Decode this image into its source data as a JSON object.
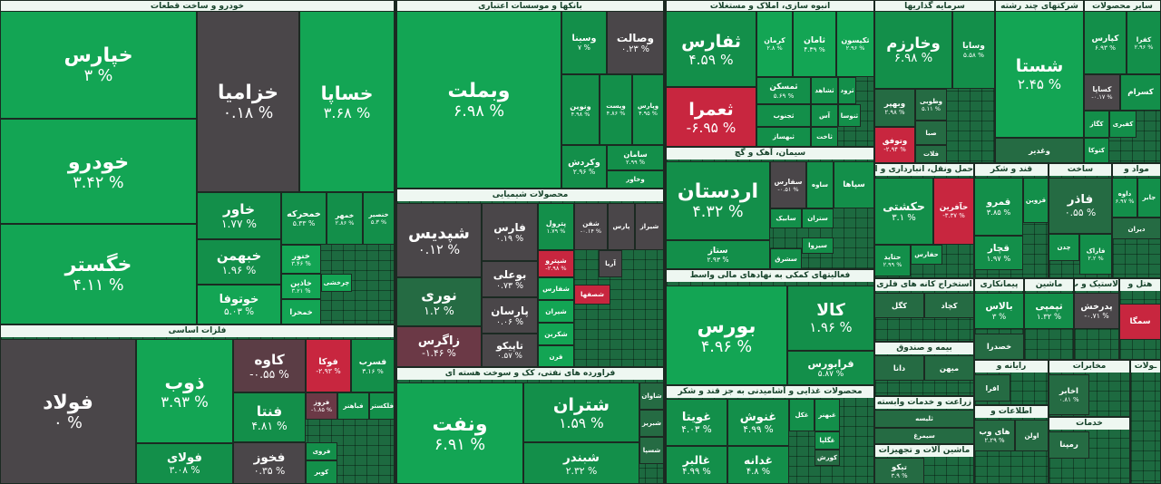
{
  "sectors": [
    {
      "title": "خودرو و ساخت قطعات",
      "tiles": [
        {
          "name": "خپارس",
          "change": "۳ %",
          "color": "#13a554"
        },
        {
          "name": "خودرو",
          "change": "۳.۴۲ %",
          "color": "#13a554"
        },
        {
          "name": "خگستر",
          "change": "۴.۱۱ %",
          "color": "#13a554"
        },
        {
          "name": "خزامیا",
          "change": "۰.۱۸ %",
          "color": "#4a4649"
        },
        {
          "name": "خساپا",
          "change": "۳.۶۸ %",
          "color": "#13a554"
        },
        {
          "name": "خاور",
          "change": "۱.۷۷ %",
          "color": "#138f4a"
        },
        {
          "name": "خبهمن",
          "change": "۱.۹۶ %",
          "color": "#138f4a"
        },
        {
          "name": "خوتوفا",
          "change": "۵.۰۳ %",
          "color": "#13a554"
        },
        {
          "name": "خمحرکه",
          "change": "۵.۳۳ %",
          "color": "#138f4a"
        },
        {
          "name": "خمهر",
          "change": "۲.۸۶ %",
          "color": "#138f4a"
        },
        {
          "name": "خنصیر",
          "change": "۵.۳ %",
          "color": "#138f4a"
        },
        {
          "name": "خنور",
          "change": "۳.۴۶ %",
          "color": "#13a554"
        },
        {
          "name": "خاذین",
          "change": "۳.۲۱ %",
          "color": "#13a554"
        },
        {
          "name": "خمحرا",
          "color": "#13a554"
        },
        {
          "name": "چرخشی",
          "color": "#13a554"
        }
      ]
    },
    {
      "title": "فلزات اساسی",
      "tiles": [
        {
          "name": "فولاد",
          "change": "۰ %",
          "color": "#4a4649"
        },
        {
          "name": "ذوب",
          "change": "۳.۹۳ %",
          "color": "#13a554"
        },
        {
          "name": "فولای",
          "change": "۳.۰۸ %",
          "color": "#138f4a"
        },
        {
          "name": "کاوه",
          "change": "-۰.۵۵ %",
          "color": "#5b3d45"
        },
        {
          "name": "فوکا",
          "change": "-۲.۹۳ %",
          "color": "#c8263f"
        },
        {
          "name": "فسرب",
          "change": "۳.۱۶ %",
          "color": "#138f4a"
        },
        {
          "name": "فنتا",
          "change": "۴.۸۱ %",
          "color": "#138f4a"
        },
        {
          "name": "فخوز",
          "change": "۰.۳۵ %",
          "color": "#4a4649"
        },
        {
          "name": "فروز",
          "change": "-۱.۸۵ %",
          "color": "#6b3946"
        },
        {
          "name": "فباهنر",
          "color": "#138f4a"
        },
        {
          "name": "فلکستر",
          "color": "#138f4a"
        },
        {
          "name": "فروی",
          "color": "#138f4a"
        },
        {
          "name": "کویر",
          "color": "#138f4a"
        }
      ]
    },
    {
      "title": "بانکها و موسسات اعتباری",
      "tiles": [
        {
          "name": "وبملت",
          "change": "۶.۹۸ %",
          "color": "#13a554"
        },
        {
          "name": "وسینا",
          "change": "۷ %",
          "color": "#138f4a"
        },
        {
          "name": "وصالت",
          "change": "۰.۲۳ %",
          "color": "#4a4649"
        },
        {
          "name": "ونوین",
          "change": "۴.۹۸ %",
          "color": "#138f4a"
        },
        {
          "name": "وپست",
          "change": "۴.۸۶ %",
          "color": "#138f4a"
        },
        {
          "name": "وپارس",
          "change": "۴.۹۵ %",
          "color": "#138f4a"
        },
        {
          "name": "وکردش",
          "change": "۲.۹۶ %",
          "color": "#138f4a"
        },
        {
          "name": "سامان",
          "change": "۲.۹۹ %",
          "color": "#138f4a"
        },
        {
          "name": "وخاور",
          "color": "#138f4a"
        }
      ]
    },
    {
      "title": "محصولات شیمیایی",
      "tiles": [
        {
          "name": "شپدیس",
          "change": "۰.۱۲ %",
          "color": "#4a4649"
        },
        {
          "name": "نوری",
          "change": "۱.۲ %",
          "color": "#256b43"
        },
        {
          "name": "زاگرس",
          "change": "-۱.۴۶ %",
          "color": "#6b3946"
        },
        {
          "name": "فارس",
          "change": "۰.۱۹ %",
          "color": "#4a4649"
        },
        {
          "name": "بوعلی",
          "change": "۰.۷۳ %",
          "color": "#4a4649"
        },
        {
          "name": "پارسان",
          "change": "۰.۰۶ %",
          "color": "#4a4649"
        },
        {
          "name": "تاپیکو",
          "change": "۰.۵۷ %",
          "color": "#4a4649"
        },
        {
          "name": "پترول",
          "change": "۱.۷۹ %",
          "color": "#138f4a"
        },
        {
          "name": "شفن",
          "change": "-۰.۱۴ %",
          "color": "#4a4649"
        },
        {
          "name": "پارس",
          "color": "#4a4649"
        },
        {
          "name": "شیراز",
          "color": "#4a4649"
        },
        {
          "name": "شپترو",
          "change": "-۲.۹۸ %",
          "color": "#c8263f"
        },
        {
          "name": "شفارس",
          "color": "#13a554"
        },
        {
          "name": "شیران",
          "color": "#13a554"
        },
        {
          "name": "شکربن",
          "color": "#13a554"
        },
        {
          "name": "قرن",
          "color": "#13a554"
        },
        {
          "name": "شصفها",
          "color": "#c8263f"
        },
        {
          "name": "آریا",
          "color": "#4a4649"
        }
      ]
    },
    {
      "title": "فراورده های نفتی، کک و سوخت هسته ای",
      "tiles": [
        {
          "name": "ونفت",
          "change": "۶.۹۱ %",
          "color": "#13a554"
        },
        {
          "name": "شتران",
          "change": "۱.۵۹ %",
          "color": "#138f4a"
        },
        {
          "name": "شبندر",
          "change": "۲.۳۲ %",
          "color": "#138f4a"
        },
        {
          "name": "شاوان",
          "color": "#256b43"
        },
        {
          "name": "شبریز",
          "color": "#256b43"
        },
        {
          "name": "شسپا",
          "color": "#256b43"
        }
      ]
    },
    {
      "title": "انبوه سازی، املاک و مستغلات",
      "tiles": [
        {
          "name": "ثفارس",
          "change": "۴.۵۹ %",
          "color": "#138f4a"
        },
        {
          "name": "ثعمرا",
          "change": "-۶.۹۵ %",
          "color": "#c8263f"
        },
        {
          "name": "کرمان",
          "change": "۲.۸ %",
          "color": "#13a554"
        },
        {
          "name": "ثامان",
          "change": "۴.۳۹ %",
          "color": "#13a554"
        },
        {
          "name": "ثکیسون",
          "change": "۲.۹۶ %",
          "color": "#13a554"
        },
        {
          "name": "ثمسکن",
          "change": "۵.۶۹ %",
          "color": "#138f4a"
        },
        {
          "name": "ثشاهد",
          "color": "#138f4a"
        },
        {
          "name": "ثرود",
          "color": "#138f4a"
        },
        {
          "name": "ثجنوب",
          "color": "#138f4a"
        },
        {
          "name": "آس",
          "color": "#138f4a"
        },
        {
          "name": "ثنوسا",
          "color": "#138f4a"
        },
        {
          "name": "ثبهساز",
          "color": "#138f4a"
        },
        {
          "name": "ثاخت",
          "color": "#138f4a"
        }
      ]
    },
    {
      "title": "سیمان، آهک و گچ",
      "tiles": [
        {
          "name": "اردستان",
          "change": "۴.۳۲ %",
          "color": "#138f4a"
        },
        {
          "name": "ستاز",
          "change": "۲.۹۳ %",
          "color": "#138f4a"
        },
        {
          "name": "سفارس",
          "change": "-۰.۵۱ %",
          "color": "#4a4649"
        },
        {
          "name": "ساوه",
          "color": "#138f4a"
        },
        {
          "name": "سپاها",
          "color": "#138f4a"
        },
        {
          "name": "سابیک",
          "color": "#138f4a"
        },
        {
          "name": "ستران",
          "color": "#138f4a"
        },
        {
          "name": "سشرق",
          "color": "#138f4a"
        },
        {
          "name": "سیزوا",
          "color": "#138f4a"
        }
      ]
    },
    {
      "title": "فعالیتهای کمکی به نهادهای مالی واسط",
      "tiles": [
        {
          "name": "بورس",
          "change": "۴.۹۶ %",
          "color": "#13a554"
        },
        {
          "name": "کالا",
          "change": "۱.۹۶ %",
          "color": "#138f4a"
        },
        {
          "name": "فرابورس",
          "change": "۵.۸۷ %",
          "color": "#138f4a"
        }
      ]
    },
    {
      "title": "محصولات غذایی و آشامیدنی به جز قند و شکر",
      "tiles": [
        {
          "name": "غویتا",
          "change": "۴.۰۳ %",
          "color": "#138f4a"
        },
        {
          "name": "غالبر",
          "change": "۴.۹۹ %",
          "color": "#138f4a"
        },
        {
          "name": "غنوش",
          "change": "۴.۹۹ %",
          "color": "#138f4a"
        },
        {
          "name": "غدانه",
          "change": "۴.۸ %",
          "color": "#138f4a"
        },
        {
          "name": "غکل",
          "color": "#138f4a"
        },
        {
          "name": "غبهنر",
          "color": "#138f4a"
        },
        {
          "name": "غگلپا",
          "color": "#138f4a"
        },
        {
          "name": "کورش",
          "color": "#256b43"
        }
      ]
    },
    {
      "title": "سرمایه گذاریها",
      "tiles": [
        {
          "name": "وخارزم",
          "change": "۶.۹۸ %",
          "color": "#138f4a"
        },
        {
          "name": "وسایا",
          "change": "۵.۵۸ %",
          "color": "#138f4a"
        },
        {
          "name": "وبهپر",
          "change": "۲.۹۸ %",
          "color": "#256b43"
        },
        {
          "name": "وطوبی",
          "change": "۵.۱۱ %",
          "color": "#256b43"
        },
        {
          "name": "صبا",
          "color": "#256b43"
        },
        {
          "name": "وتوفق",
          "change": "-۲.۹۴ %",
          "color": "#c8263f"
        },
        {
          "name": "فلات",
          "color": "#256b43"
        }
      ]
    },
    {
      "title": "شرکتهای چند رشته",
      "tiles": [
        {
          "name": "شستا",
          "change": "۲.۴۵ %",
          "color": "#13a554"
        },
        {
          "name": "وغدیر",
          "color": "#256b43"
        }
      ]
    },
    {
      "title": "سایر محصولات",
      "tiles": [
        {
          "name": "کپارس",
          "change": "۶.۹۳ %",
          "color": "#138f4a"
        },
        {
          "name": "کفرا",
          "change": "۲.۹۶ %",
          "color": "#138f4a"
        },
        {
          "name": "کساپا",
          "change": "-۰.۱۷ %",
          "color": "#4a4649"
        },
        {
          "name": "کسرام",
          "color": "#138f4a"
        },
        {
          "name": "کگاز",
          "color": "#138f4a"
        },
        {
          "name": "کفیری",
          "color": "#138f4a"
        },
        {
          "name": "کتوکا",
          "color": "#138f4a"
        }
      ]
    },
    {
      "title": "حمل ونقل، انبارداری و ارتباطات",
      "tiles": [
        {
          "name": "حکشتی",
          "change": "۳.۱ %",
          "color": "#138f4a"
        },
        {
          "name": "حآفرین",
          "change": "-۳.۳۷ %",
          "color": "#c8263f"
        },
        {
          "name": "حتاید",
          "change": "۲.۹۹ %",
          "color": "#138f4a"
        },
        {
          "name": "حفارس",
          "color": "#138f4a"
        }
      ]
    },
    {
      "title": "قند و شکر",
      "tiles": [
        {
          "name": "قمرو",
          "change": "۳.۸۵ %",
          "color": "#138f4a"
        },
        {
          "name": "قزوین",
          "color": "#138f4a"
        },
        {
          "name": "قچار",
          "change": "۱.۹۷ %",
          "color": "#138f4a"
        }
      ]
    },
    {
      "title": "ساخت",
      "tiles": [
        {
          "name": "فاذر",
          "change": "۰.۵۵ %",
          "color": "#256b43"
        },
        {
          "name": "چدن",
          "color": "#138f4a"
        },
        {
          "name": "فاراک",
          "change": "۲.۲ %",
          "color": "#138f4a"
        }
      ]
    },
    {
      "title": "مواد و",
      "tiles": [
        {
          "name": "داوه",
          "change": "۶.۹۷ %",
          "color": "#138f4a"
        },
        {
          "name": "جابر",
          "color": "#138f4a"
        },
        {
          "name": "دیران",
          "color": "#256b43"
        }
      ]
    },
    {
      "title": "استخراج کانه های فلزی",
      "tiles": [
        {
          "name": "کگل",
          "color": "#256b43"
        },
        {
          "name": "کچاد",
          "color": "#256b43"
        }
      ]
    },
    {
      "title": "بیمه و صندوق",
      "tiles": [
        {
          "name": "دانا",
          "color": "#256b43"
        },
        {
          "name": "میهن",
          "color": "#256b43"
        }
      ]
    },
    {
      "title": "زراعت و خدمات وابسته",
      "tiles": [
        {
          "name": "ثلیسه",
          "color": "#256b43"
        },
        {
          "name": "سیمرغ",
          "color": "#256b43"
        }
      ]
    },
    {
      "title": "ماشین آلات و تجهیزات",
      "tiles": [
        {
          "name": "تیکو",
          "change": "۳.۹ %",
          "color": "#256b43"
        }
      ]
    },
    {
      "title": "پیمانکاری",
      "tiles": [
        {
          "name": "بالاس",
          "change": "۳ %",
          "color": "#138f4a"
        },
        {
          "name": "خصدرا",
          "color": "#256b43"
        }
      ]
    },
    {
      "title": "ماشین",
      "tiles": [
        {
          "name": "تپمپی",
          "change": "۱.۳۲ %",
          "color": "#138f4a"
        }
      ]
    },
    {
      "title": "لاستیک و پ",
      "tiles": [
        {
          "name": "پدرخش",
          "change": "-۰.۷۱ %",
          "color": "#4a4649"
        }
      ]
    },
    {
      "title": "هتل و",
      "tiles": [
        {
          "name": "سمگا",
          "color": "#c8263f"
        }
      ]
    },
    {
      "title": "رایانه و",
      "tiles": [
        {
          "name": "افرا",
          "color": "#256b43"
        }
      ]
    },
    {
      "title": "مخابرات",
      "tiles": [
        {
          "name": "اخابر",
          "change": "۰.۸۱ %",
          "color": "#256b43"
        }
      ]
    },
    {
      "title": "اطلاعات و",
      "tiles": [
        {
          "name": "های وب",
          "change": "۲.۲۹ %",
          "color": "#256b43"
        },
        {
          "name": "اولن",
          "color": "#256b43"
        }
      ]
    },
    {
      "title": "خدمات",
      "tiles": [
        {
          "name": "رمپنا",
          "color": "#256b43"
        }
      ]
    },
    {
      "title": "ـولات",
      "tiles": []
    }
  ]
}
